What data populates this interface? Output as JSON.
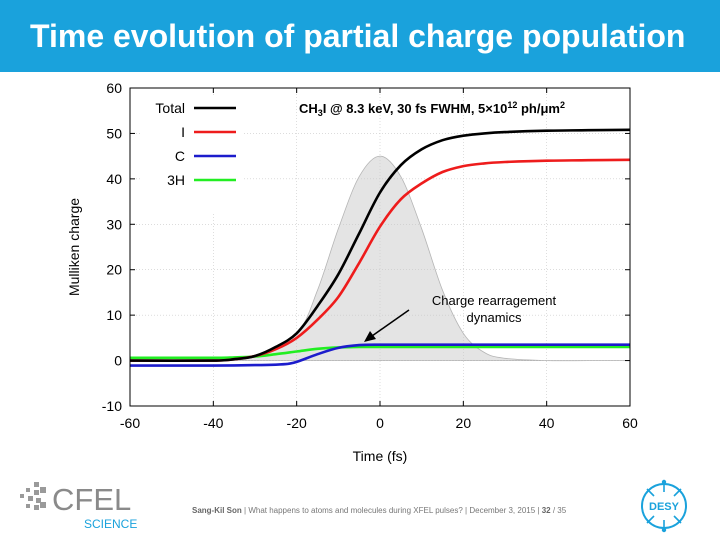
{
  "slide": {
    "title": "Time evolution of partial charge population",
    "footer_author": "Sang-Kil Son",
    "footer_talk": "What happens to atoms and molecules during XFEL pulses?",
    "footer_date": "December 3, 2015",
    "page_current": "32",
    "page_total": "35"
  },
  "logos": {
    "cfel_word": "CFEL",
    "cfel_sub": "SCIENCE",
    "desy_word": "DESY"
  },
  "colors": {
    "title_bar": "#1aa2dc",
    "total": "#000000",
    "iodine": "#ee1c1c",
    "carbon": "#1c1ccc",
    "hydrogen": "#22ee22",
    "pulse_fill": "#e4e4e4"
  },
  "chart_data": {
    "type": "line",
    "title": "CH3I @ 8.3 keV, 30 fs FWHM, 5×10^12 ph/μm^2",
    "title_parts": {
      "a": "CH",
      "b": "3",
      "c": "I @ 8.3 keV, 30 fs FWHM, 5×10",
      "d": "12",
      "e": " ph/μm",
      "f": "2"
    },
    "xlabel": "Time (fs)",
    "ylabel": "Mulliken charge",
    "xlim": [
      -60,
      60
    ],
    "ylim": [
      -10,
      60
    ],
    "xticks": [
      -60,
      -40,
      -20,
      0,
      20,
      40,
      60
    ],
    "yticks": [
      -10,
      0,
      10,
      20,
      30,
      40,
      50,
      60
    ],
    "grid": true,
    "legend_position": "top-left",
    "annotation": {
      "lines": [
        "Charge rearragement",
        "dynamics"
      ],
      "x": -5,
      "y": 4
    },
    "background_pulse": {
      "x": [
        -60,
        -40,
        -30,
        -20,
        -15,
        -10,
        -5,
        0,
        5,
        10,
        15,
        20,
        25,
        30,
        40,
        50,
        60
      ],
      "y": [
        0,
        0,
        1.0,
        6.0,
        15.5,
        29.0,
        40.5,
        45.0,
        40.5,
        29.0,
        15.5,
        6.0,
        1.8,
        0.5,
        0,
        0,
        0
      ]
    },
    "series": [
      {
        "name": "Total",
        "x": [
          -60,
          -40,
          -35,
          -30,
          -25,
          -20,
          -15,
          -10,
          -5,
          0,
          5,
          10,
          15,
          20,
          25,
          30,
          40,
          50,
          60
        ],
        "y": [
          0,
          0,
          0.3,
          1,
          3,
          6,
          12,
          19,
          28,
          37,
          43,
          46.5,
          48.5,
          49.5,
          50,
          50.3,
          50.6,
          50.7,
          50.8
        ]
      },
      {
        "name": "I",
        "x": [
          -60,
          -40,
          -35,
          -30,
          -25,
          -20,
          -15,
          -10,
          -5,
          0,
          5,
          10,
          15,
          20,
          25,
          30,
          40,
          50,
          60
        ],
        "y": [
          0,
          0,
          0.3,
          1,
          2.5,
          5,
          9,
          14,
          21.5,
          29.5,
          35.5,
          39,
          41.5,
          42.8,
          43.4,
          43.7,
          44,
          44.1,
          44.2
        ]
      },
      {
        "name": "C",
        "x": [
          -60,
          -40,
          -30,
          -25,
          -22,
          -20,
          -15,
          -10,
          -5,
          0,
          10,
          20,
          40,
          60
        ],
        "y": [
          -1.1,
          -1.1,
          -1.0,
          -0.9,
          -0.7,
          -0.3,
          1.4,
          2.8,
          3.4,
          3.5,
          3.5,
          3.5,
          3.5,
          3.5
        ]
      },
      {
        "name": "3H",
        "x": [
          -60,
          -40,
          -35,
          -30,
          -25,
          -20,
          -15,
          -10,
          -5,
          0,
          20,
          40,
          60
        ],
        "y": [
          0.6,
          0.6,
          0.7,
          0.9,
          1.4,
          2.0,
          2.6,
          2.9,
          3.0,
          3.0,
          3.0,
          3.0,
          3.0
        ]
      }
    ]
  }
}
